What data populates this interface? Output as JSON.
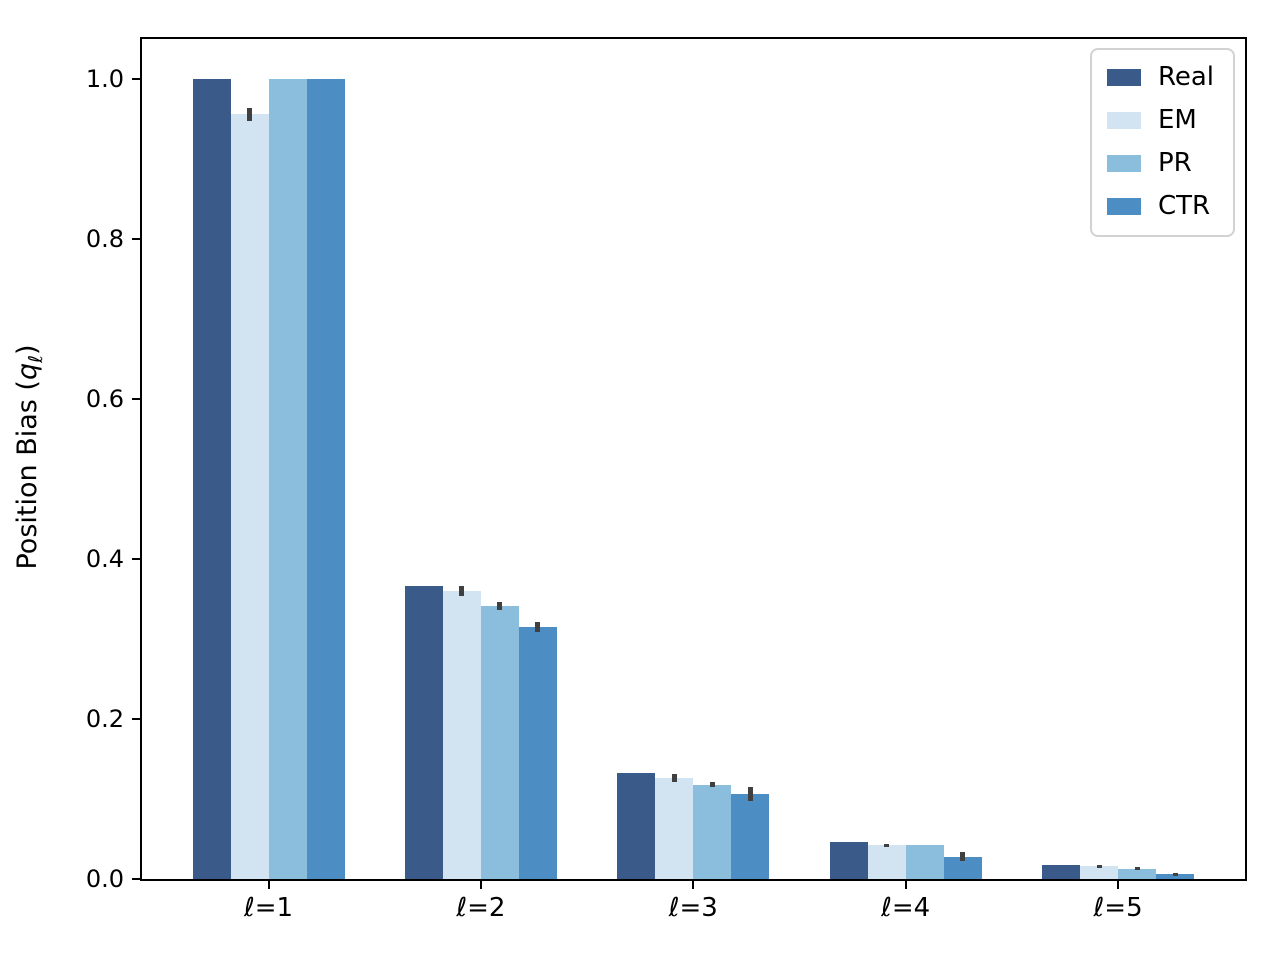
{
  "figure": {
    "background": "#ffffff",
    "axis_color": "#000000",
    "ylabel_parts": {
      "prefix": "Position Bias (",
      "variable": "q",
      "subscript": "ℓ",
      "suffix": ")"
    }
  },
  "chart_data": {
    "type": "bar",
    "title": "",
    "xlabel": "",
    "ylabel": "Position Bias (qℓ)",
    "categories": [
      "ℓ=1",
      "ℓ=2",
      "ℓ=3",
      "ℓ=4",
      "ℓ=5"
    ],
    "series": [
      {
        "name": "Real",
        "color": "#3a5a8a",
        "values": [
          1.0,
          0.366,
          0.133,
          0.046,
          0.017
        ],
        "errors": [
          0,
          0,
          0,
          0,
          0
        ]
      },
      {
        "name": "EM",
        "color": "#d2e3f2",
        "values": [
          0.956,
          0.36,
          0.126,
          0.042,
          0.016
        ],
        "errors": [
          0.008,
          0.006,
          0.005,
          0.002,
          0.002
        ]
      },
      {
        "name": "PR",
        "color": "#8bbedd",
        "values": [
          1.0,
          0.341,
          0.118,
          0.042,
          0.013
        ],
        "errors": [
          0,
          0.005,
          0.003,
          0,
          0.002
        ]
      },
      {
        "name": "CTR",
        "color": "#4c8dc4",
        "values": [
          1.0,
          0.315,
          0.106,
          0.028,
          0.006
        ],
        "errors": [
          0,
          0.006,
          0.009,
          0.006,
          0.002
        ]
      }
    ],
    "ylim": [
      0,
      1.05
    ],
    "yticks": [
      0.0,
      0.2,
      0.4,
      0.6,
      0.8,
      1.0
    ],
    "ytick_labels": [
      "0.0",
      "0.2",
      "0.4",
      "0.6",
      "0.8",
      "1.0"
    ],
    "grid": false,
    "legend_position": "upper right",
    "error_bar_color": "#404040"
  }
}
